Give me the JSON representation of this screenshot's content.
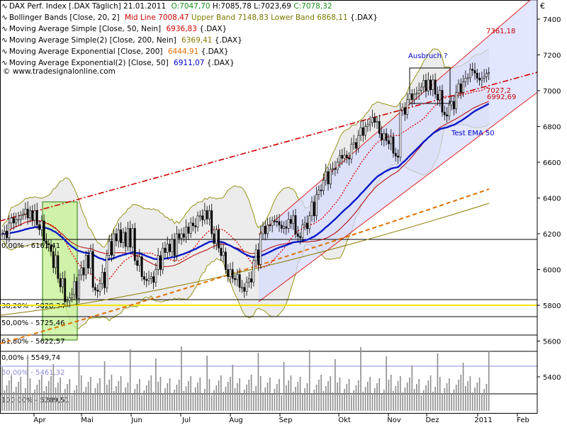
{
  "currency_symbol": "€",
  "watermark": "© www.tradesignalonline.com",
  "legend": [
    {
      "label": "DAX Perf. Index [.DAX  Täglich] 21.01.2011",
      "parts": [
        {
          "t": "O:7047,70",
          "c": "#1a8f1a"
        },
        {
          "t": "H:7085,78",
          "c": "#000000"
        },
        {
          "t": "L:7023,69",
          "c": "#000000"
        },
        {
          "t": "C:7078,32",
          "c": "#1a8f1a"
        }
      ]
    },
    {
      "label": "Bollinger Bands [Close, 20, 2]",
      "parts": [
        {
          "t": "Mid Line 7008,47",
          "c": "#cc0000"
        },
        {
          "t": "Upper Band 7148,83",
          "c": "#7a7a00"
        },
        {
          "t": "Lower Band 6868,11",
          "c": "#7a7a00"
        },
        {
          "t": "{.DAX}",
          "c": "#000000"
        }
      ]
    },
    {
      "label": "Moving Average Simple [Close, 50, Nein]",
      "parts": [
        {
          "t": "6936,83",
          "c": "#cc0000"
        },
        {
          "t": "{.DAX}",
          "c": "#000000"
        }
      ]
    },
    {
      "label": "Moving Average Simple(2) [Close, 200, Nein]",
      "parts": [
        {
          "t": "6369,41",
          "c": "#8a7a00"
        },
        {
          "t": "{.DAX}",
          "c": "#000000"
        }
      ]
    },
    {
      "label": "Moving Average Exponential [Close, 200]",
      "parts": [
        {
          "t": "6444,91",
          "c": "#e07000"
        },
        {
          "t": "{.DAX}",
          "c": "#000000"
        }
      ]
    },
    {
      "label": "Moving Average Exponential(2) [Close, 50]",
      "parts": [
        {
          "t": "6911,07",
          "c": "#0000cc"
        },
        {
          "t": "{.DAX}",
          "c": "#000000"
        }
      ]
    }
  ],
  "chart_data": {
    "type": "candlestick",
    "instrument": "DAX Perf. Index",
    "ylim": [
      5200,
      7500
    ],
    "y_ticks": [
      5400,
      5600,
      5800,
      6000,
      6200,
      6400,
      6600,
      6800,
      7000,
      7200,
      7400
    ],
    "x_labels": [
      "Apr",
      "Mai",
      "Jun",
      "Jul",
      "Aug",
      "Sep",
      "Okt",
      "Nov",
      "Dez",
      "2011",
      "Feb"
    ],
    "close_monthly_approx": {
      "Apr": [
        6200,
        6260,
        6280,
        6310,
        6330,
        6250,
        6160
      ],
      "Mai": [
        6100,
        5950,
        5820,
        5860,
        5970,
        6080,
        5900
      ],
      "Jun": [
        5920,
        6080,
        6200,
        6150,
        6230,
        6050,
        5960
      ],
      "Jul": [
        5950,
        6000,
        6120,
        6100,
        6200,
        6180,
        6260
      ],
      "Aug": [
        6300,
        6330,
        6200,
        6120,
        6000,
        5950,
        5900,
        5930
      ],
      "Sep": [
        6050,
        6200,
        6250,
        6270,
        6230,
        6280,
        6200
      ],
      "Okt": [
        6250,
        6300,
        6420,
        6500,
        6560,
        6600,
        6640
      ],
      "Nov": [
        6700,
        6750,
        6800,
        6850,
        6760,
        6720,
        6650
      ],
      "Dez": [
        6890,
        6950,
        6980,
        7020,
        7060,
        6980,
        6880
      ],
      "Jan": [
        6920,
        6990,
        7050,
        7120,
        7070,
        7078.32
      ]
    },
    "fib_levels": [
      {
        "label": "0,00% - 6161,41",
        "value": 6161.41,
        "color": "#000000"
      },
      {
        "label": "38,20% - 5828,34",
        "value": 5828.34,
        "color": "#000000"
      },
      {
        "label": "50,00% - 5725,46",
        "value": 5725.46,
        "color": "#000000"
      },
      {
        "label": "61,80% - 5622,57",
        "value": 5622.57,
        "color": "#000000"
      },
      {
        "label": "0,00% - 5549,74",
        "value": 5549.74,
        "color": "#000000"
      },
      {
        "label": "50,00% - 5461,32",
        "value": 5461.32,
        "color": "#8a8ad8"
      },
      {
        "label": "100,00% - 5289,51",
        "value": 5289.51,
        "color": "#000000"
      }
    ],
    "annotations": [
      {
        "text": "Ausbruch ?",
        "color": "#0000cc"
      },
      {
        "text": "7361,18",
        "color": "#cc0000"
      },
      {
        "text": "7027,2",
        "color": "#cc0000"
      },
      {
        "text": "6992,69",
        "color": "#cc0000"
      },
      {
        "text": "Test EMA 50",
        "color": "#0000cc"
      }
    ],
    "volume_scale_note": "volume bars shown in lower panel"
  }
}
